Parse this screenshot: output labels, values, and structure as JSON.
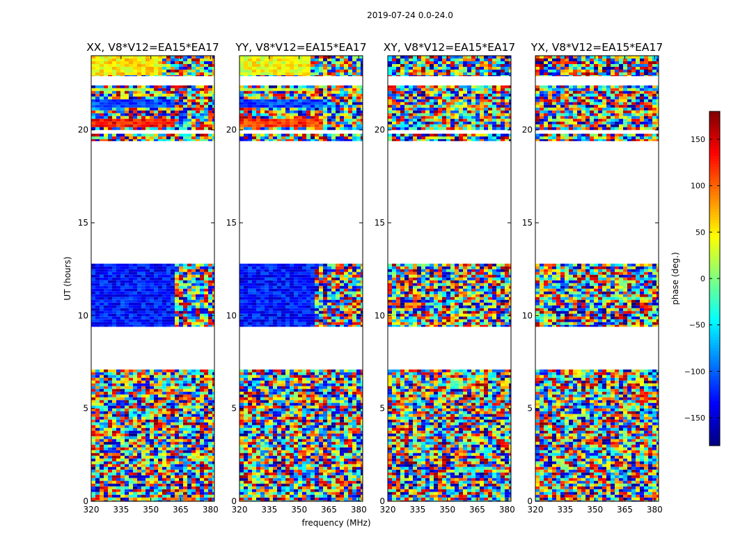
{
  "suptitle": "2019-07-24 0.0-24.0",
  "xlabel": "frequency (MHz)",
  "ylabel": "UT (hours)",
  "colorbar": {
    "label": "phase (deg.)",
    "range": [
      -180,
      180
    ],
    "ticks": [
      150,
      100,
      50,
      0,
      -50,
      -100,
      -150
    ],
    "tick_labels": [
      "150",
      "100",
      "50",
      "0",
      "−50",
      "−100",
      "−150"
    ],
    "colormap": "jet"
  },
  "chart_data": [
    {
      "type": "heatmap",
      "title": "XX, V8*V12=EA15*EA17",
      "xlim": [
        320,
        382
      ],
      "ylim": [
        0,
        24
      ],
      "x_ticks": [
        320,
        335,
        350,
        365,
        380
      ],
      "y_ticks": [
        0,
        5,
        10,
        15,
        20
      ],
      "z": "phase (deg.)",
      "data_time_ranges_hours": [
        [
          0,
          7.1
        ],
        [
          9.4,
          12.8
        ],
        [
          19.4,
          19.8
        ],
        [
          20.0,
          22.4
        ],
        [
          22.9,
          24
        ]
      ],
      "coherent_phase_segments": [
        {
          "ut_hours": [
            9.4,
            12.8
          ],
          "freq_mhz": [
            320,
            362
          ],
          "phase_deg": -130
        },
        {
          "ut_hours": [
            20.2,
            20.6
          ],
          "freq_mhz": [
            320,
            362
          ],
          "phase_deg": 130
        },
        {
          "ut_hours": [
            21.2,
            21.6
          ],
          "freq_mhz": [
            320,
            362
          ],
          "phase_deg": -110
        },
        {
          "ut_hours": [
            22.1,
            22.3
          ],
          "freq_mhz": [
            320,
            352
          ],
          "phase_deg": 20
        },
        {
          "ut_hours": [
            23.0,
            24.0
          ],
          "freq_mhz": [
            320,
            355
          ],
          "phase_deg": 50
        }
      ]
    },
    {
      "type": "heatmap",
      "title": "YY, V8*V12=EA15*EA17",
      "xlim": [
        320,
        382
      ],
      "ylim": [
        0,
        24
      ],
      "x_ticks": [
        320,
        335,
        350,
        365,
        380
      ],
      "y_ticks": [
        0,
        5,
        10,
        15,
        20
      ],
      "z": "phase (deg.)",
      "data_time_ranges_hours": [
        [
          0,
          7.1
        ],
        [
          9.4,
          12.8
        ],
        [
          19.4,
          19.8
        ],
        [
          20.0,
          22.4
        ],
        [
          22.9,
          24
        ]
      ],
      "coherent_phase_segments": [
        {
          "ut_hours": [
            9.4,
            12.8
          ],
          "freq_mhz": [
            320,
            358
          ],
          "phase_deg": -130
        },
        {
          "ut_hours": [
            20.2,
            20.6
          ],
          "freq_mhz": [
            320,
            362
          ],
          "phase_deg": 120
        },
        {
          "ut_hours": [
            21.2,
            21.6
          ],
          "freq_mhz": [
            320,
            362
          ],
          "phase_deg": -110
        },
        {
          "ut_hours": [
            22.1,
            22.3
          ],
          "freq_mhz": [
            320,
            358
          ],
          "phase_deg": 20
        },
        {
          "ut_hours": [
            23.0,
            24.0
          ],
          "freq_mhz": [
            320,
            355
          ],
          "phase_deg": 40
        }
      ]
    },
    {
      "type": "heatmap",
      "title": "XY, V8*V12=EA15*EA17",
      "xlim": [
        320,
        382
      ],
      "ylim": [
        0,
        24
      ],
      "x_ticks": [
        320,
        335,
        350,
        365,
        380
      ],
      "y_ticks": [
        0,
        5,
        10,
        15,
        20
      ],
      "z": "phase (deg.)",
      "data_time_ranges_hours": [
        [
          0,
          7.1
        ],
        [
          9.4,
          12.8
        ],
        [
          19.4,
          19.8
        ],
        [
          20.0,
          22.4
        ],
        [
          22.9,
          24
        ]
      ],
      "coherent_phase_segments": []
    },
    {
      "type": "heatmap",
      "title": "YX, V8*V12=EA15*EA17",
      "xlim": [
        320,
        382
      ],
      "ylim": [
        0,
        24
      ],
      "x_ticks": [
        320,
        335,
        350,
        365,
        380
      ],
      "y_ticks": [
        0,
        5,
        10,
        15,
        20
      ],
      "z": "phase (deg.)",
      "data_time_ranges_hours": [
        [
          0,
          7.1
        ],
        [
          9.4,
          12.8
        ],
        [
          19.4,
          19.8
        ],
        [
          20.0,
          22.4
        ],
        [
          22.9,
          24
        ]
      ],
      "coherent_phase_segments": []
    }
  ]
}
